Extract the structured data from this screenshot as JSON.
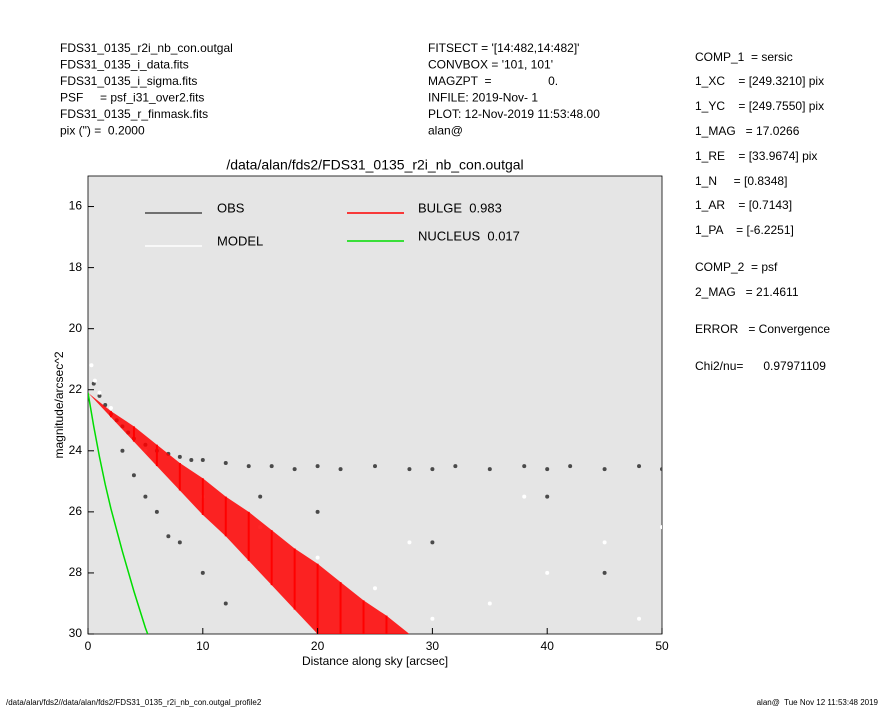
{
  "header": {
    "left": [
      "FDS31_0135_r2i_nb_con.outgal",
      "FDS31_0135_i_data.fits",
      "FDS31_0135_i_sigma.fits",
      "PSF     = psf_i31_over2.fits",
      "FDS31_0135_r_finmask.fits",
      "pix (\") =  0.2000"
    ],
    "middle": [
      "FITSECT = '[14:482,14:482]'",
      "CONVBOX = '101, 101'",
      "MAGZPT  =                 0.",
      "INFILE: 2019-Nov- 1",
      "PLOT: 12-Nov-2019 11:53:48.00",
      "alan@"
    ],
    "right": [
      "COMP_1  = sersic",
      "1_XC    = [249.3210] pix",
      "1_YC    = [249.7550] pix",
      "1_MAG   = 17.0266",
      "1_RE    = [33.9674] pix",
      "1_N     = [0.8348]",
      "1_AR    = [0.7143]",
      "1_PA    = [-6.2251]",
      "COMP_2  = psf",
      "2_MAG   = 21.4611",
      "ERROR   = Convergence",
      "Chi2/nu=      0.97971109"
    ]
  },
  "footer": {
    "left": "/data/alan/fds2//data/alan/fds2/FDS31_0135_r2i_nb_con.outgal_profile2",
    "right": "alan@  Tue Nov 12 11:53:48 2019"
  },
  "chart_data": {
    "type": "scatter",
    "title": "/data/alan/fds2/FDS31_0135_r2i_nb_con.outgal",
    "xlabel": "Distance along sky [arcsec]",
    "ylabel": "magnitude/arcsec^2",
    "xlim": [
      0,
      50
    ],
    "ylim": [
      30,
      15
    ],
    "xticks": [
      0,
      10,
      20,
      30,
      40,
      50
    ],
    "yticks": [
      16,
      18,
      20,
      22,
      24,
      26,
      28,
      30
    ],
    "series": [
      {
        "name": "OBS",
        "color": "#4a4a4a",
        "x": [
          0.5,
          1,
          1.5,
          2,
          2.5,
          3,
          3.5,
          4,
          5,
          6,
          7,
          8,
          9,
          10,
          12,
          14,
          16,
          18,
          20,
          22,
          25,
          28,
          30,
          32,
          35,
          38,
          40,
          42,
          45,
          48,
          50,
          3,
          4,
          5,
          6,
          8,
          10,
          12,
          7,
          15,
          20,
          30,
          40,
          45
        ],
        "values": [
          21.8,
          22.2,
          22.5,
          22.8,
          23.0,
          23.2,
          23.4,
          23.6,
          23.8,
          24.0,
          24.1,
          24.2,
          24.3,
          24.3,
          24.4,
          24.5,
          24.5,
          24.6,
          24.5,
          24.6,
          24.5,
          24.6,
          24.6,
          24.5,
          24.6,
          24.5,
          24.6,
          24.5,
          24.6,
          24.5,
          24.6,
          24.0,
          24.8,
          25.5,
          26.0,
          27.0,
          28.0,
          29.0,
          26.8,
          25.5,
          26.0,
          27.0,
          25.5,
          28.0
        ]
      },
      {
        "name": "MODEL",
        "color": "#ffffff",
        "x": [
          0.3,
          0.6,
          1,
          2,
          5,
          10,
          15,
          20,
          25,
          30,
          35,
          40,
          45,
          50,
          18,
          28,
          38,
          48
        ],
        "values": [
          21.2,
          21.7,
          22.1,
          22.6,
          24.0,
          25.5,
          26.5,
          27.5,
          28.5,
          29.5,
          29.0,
          28.0,
          27.0,
          26.5,
          29.0,
          27.0,
          25.5,
          29.5
        ]
      },
      {
        "name": "BULGE  0.983",
        "color": "#ff0000",
        "x": [
          0,
          2,
          4,
          6,
          8,
          10,
          12,
          14,
          16,
          18,
          20,
          22,
          24,
          26,
          28
        ],
        "upper": [
          22.1,
          22.9,
          23.7,
          24.5,
          25.3,
          26.1,
          26.8,
          27.6,
          28.4,
          29.2,
          30.0,
          30.8,
          31.6,
          32.4,
          33.2
        ],
        "lower": [
          22.1,
          22.7,
          23.2,
          23.8,
          24.4,
          24.9,
          25.5,
          26.0,
          26.6,
          27.2,
          27.7,
          28.3,
          28.9,
          29.4,
          30.0
        ]
      },
      {
        "name": "NUCLEUS  0.017",
        "color": "#00dd00",
        "x": [
          0,
          0.5,
          1,
          1.5,
          2,
          3,
          4,
          5,
          5.2
        ],
        "values": [
          22.1,
          23.2,
          24.2,
          25.1,
          25.9,
          27.3,
          28.6,
          29.8,
          30.0
        ]
      }
    ]
  }
}
